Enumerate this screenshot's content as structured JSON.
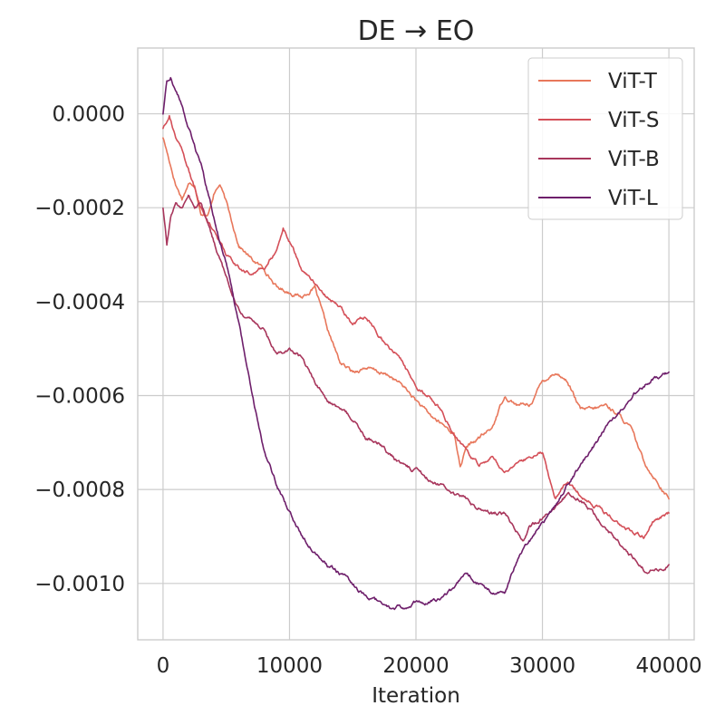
{
  "chart_data": {
    "type": "line",
    "title": "DE → EO",
    "xlabel": "Iteration",
    "ylabel": "",
    "xlim": [
      -2000,
      42000
    ],
    "ylim": [
      -0.00112,
      0.00014
    ],
    "xticks": [
      0,
      10000,
      20000,
      30000,
      40000
    ],
    "xtick_labels": [
      "0",
      "10000",
      "20000",
      "30000",
      "40000"
    ],
    "yticks": [
      0.0,
      -0.0002,
      -0.0004,
      -0.0006,
      -0.0008,
      -0.001
    ],
    "ytick_labels": [
      "0.0000",
      "−0.0002",
      "−0.0004",
      "−0.0006",
      "−0.0008",
      "−0.0010"
    ],
    "grid": true,
    "legend_position": "top-right",
    "series": [
      {
        "name": "ViT-T",
        "color": "#e8775b",
        "x": [
          0,
          500,
          1000,
          1500,
          2000,
          2500,
          3000,
          3500,
          4000,
          4500,
          5000,
          6000,
          7000,
          8000,
          9000,
          10000,
          11000,
          12000,
          13000,
          14000,
          15000,
          16000,
          17000,
          18000,
          19000,
          20000,
          21000,
          22000,
          23000,
          23500,
          24000,
          25000,
          26000,
          27000,
          28000,
          29000,
          30000,
          31000,
          32000,
          33000,
          34000,
          35000,
          36000,
          37000,
          38000,
          39000,
          40000
        ],
        "y": [
          -5e-05,
          -0.0001,
          -0.00015,
          -0.00018,
          -0.00015,
          -0.00015,
          -0.00021,
          -0.00022,
          -0.00017,
          -0.00015,
          -0.00019,
          -0.00028,
          -0.00031,
          -0.00033,
          -0.00037,
          -0.00038,
          -0.00039,
          -0.00037,
          -0.00046,
          -0.00053,
          -0.00055,
          -0.00054,
          -0.00055,
          -0.00056,
          -0.00058,
          -0.00061,
          -0.00064,
          -0.00066,
          -0.00068,
          -0.00075,
          -0.00071,
          -0.00069,
          -0.00067,
          -0.0006,
          -0.00062,
          -0.00062,
          -0.00057,
          -0.00055,
          -0.00057,
          -0.00063,
          -0.00063,
          -0.00062,
          -0.00064,
          -0.00067,
          -0.00074,
          -0.00078,
          -0.00082
        ]
      },
      {
        "name": "ViT-S",
        "color": "#d44f58",
        "x": [
          0,
          500,
          1000,
          1500,
          2000,
          3000,
          4000,
          5000,
          6000,
          7000,
          8000,
          9000,
          9500,
          10000,
          11000,
          12000,
          13000,
          14000,
          15000,
          16000,
          17000,
          18000,
          19000,
          20000,
          21000,
          22000,
          23000,
          24000,
          25000,
          26000,
          27000,
          28000,
          29000,
          30000,
          31000,
          32000,
          33000,
          34000,
          35000,
          36000,
          37000,
          38000,
          39000,
          40000
        ],
        "y": [
          -3e-05,
          0.0,
          -5e-05,
          -8e-05,
          -0.00012,
          -0.0002,
          -0.00025,
          -0.0003,
          -0.00033,
          -0.00034,
          -0.00033,
          -0.00029,
          -0.00024,
          -0.00027,
          -0.00033,
          -0.00036,
          -0.00039,
          -0.00041,
          -0.00045,
          -0.00043,
          -0.00047,
          -0.0005,
          -0.00053,
          -0.00059,
          -0.0006,
          -0.00063,
          -0.00068,
          -0.00072,
          -0.00075,
          -0.00073,
          -0.00076,
          -0.00075,
          -0.00073,
          -0.00072,
          -0.00082,
          -0.00078,
          -0.00081,
          -0.00083,
          -0.00085,
          -0.00087,
          -0.00089,
          -0.0009,
          -0.00086,
          -0.00085
        ]
      },
      {
        "name": "ViT-B",
        "color": "#a8365c",
        "x": [
          0,
          300,
          600,
          1000,
          1500,
          2000,
          2500,
          3000,
          4000,
          5000,
          6000,
          7000,
          8000,
          9000,
          10000,
          11000,
          12000,
          13000,
          14000,
          15000,
          16000,
          17000,
          18000,
          19000,
          20000,
          21000,
          22000,
          23000,
          24000,
          25000,
          26000,
          27000,
          28000,
          28500,
          29000,
          30000,
          31000,
          32000,
          33000,
          34000,
          35000,
          36000,
          37000,
          38000,
          39000,
          40000
        ],
        "y": [
          -0.0002,
          -0.00028,
          -0.00022,
          -0.00019,
          -0.0002,
          -0.00017,
          -0.0002,
          -0.00019,
          -0.00027,
          -0.00035,
          -0.00042,
          -0.00044,
          -0.00046,
          -0.00051,
          -0.0005,
          -0.00052,
          -0.00057,
          -0.00061,
          -0.00063,
          -0.00065,
          -0.00069,
          -0.0007,
          -0.00073,
          -0.00075,
          -0.00076,
          -0.00078,
          -0.00079,
          -0.00081,
          -0.00082,
          -0.00084,
          -0.00085,
          -0.00085,
          -0.00089,
          -0.00091,
          -0.00088,
          -0.00086,
          -0.00084,
          -0.00081,
          -0.00082,
          -0.00085,
          -0.00088,
          -0.00091,
          -0.00094,
          -0.00097,
          -0.00097,
          -0.00096
        ]
      },
      {
        "name": "ViT-L",
        "color": "#6e1f6b",
        "x": [
          0,
          300,
          600,
          1000,
          1500,
          2000,
          3000,
          4000,
          5000,
          6000,
          7000,
          8000,
          9000,
          10000,
          11000,
          12000,
          13000,
          14000,
          15000,
          16000,
          17000,
          18000,
          19000,
          20000,
          21000,
          22000,
          23000,
          24000,
          25000,
          26000,
          27000,
          28000,
          29000,
          30000,
          31000,
          32000,
          33000,
          34000,
          35000,
          36000,
          37000,
          38000,
          39000,
          40000
        ],
        "y": [
          0.0,
          7e-05,
          8e-05,
          5e-05,
          2e-05,
          -3e-05,
          -0.00011,
          -0.00022,
          -0.00032,
          -0.00045,
          -0.00059,
          -0.00072,
          -0.00079,
          -0.00085,
          -0.0009,
          -0.00093,
          -0.00096,
          -0.00098,
          -0.001,
          -0.00103,
          -0.00104,
          -0.00105,
          -0.00105,
          -0.00104,
          -0.00104,
          -0.00103,
          -0.00101,
          -0.00098,
          -0.001,
          -0.00102,
          -0.00102,
          -0.00095,
          -0.00091,
          -0.00087,
          -0.00084,
          -0.00079,
          -0.00075,
          -0.00071,
          -0.00067,
          -0.00064,
          -0.0006,
          -0.00058,
          -0.00056,
          -0.00055
        ]
      }
    ]
  }
}
